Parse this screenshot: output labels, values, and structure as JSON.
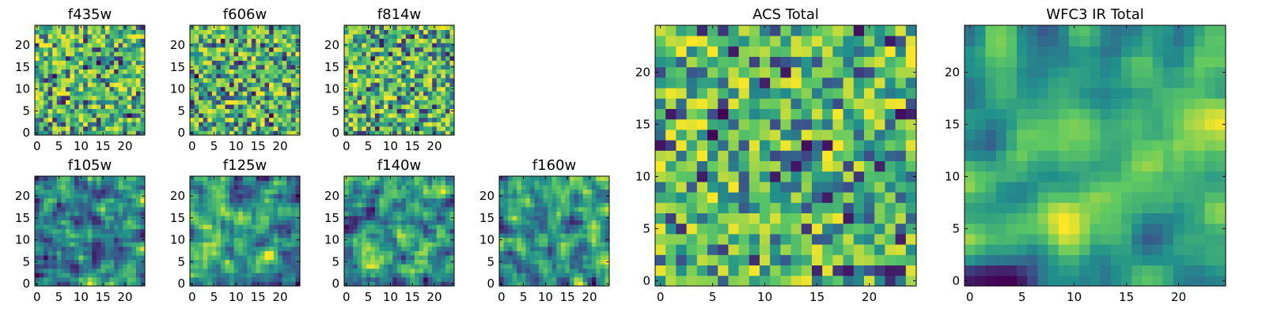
{
  "chart_data": [
    {
      "type": "heatmap",
      "title": "f435w",
      "size": 25,
      "seed": 11,
      "smooth": 0,
      "xticks": [
        "0",
        "5",
        "10",
        "15",
        "20"
      ],
      "yticks": [
        "0",
        "5",
        "10",
        "15",
        "20"
      ]
    },
    {
      "type": "heatmap",
      "title": "f606w",
      "size": 25,
      "seed": 23,
      "smooth": 0,
      "xticks": [
        "0",
        "5",
        "10",
        "15",
        "20"
      ],
      "yticks": [
        "0",
        "5",
        "10",
        "15",
        "20"
      ]
    },
    {
      "type": "heatmap",
      "title": "f814w",
      "size": 25,
      "seed": 37,
      "smooth": 0,
      "xticks": [
        "0",
        "5",
        "10",
        "15",
        "20"
      ],
      "yticks": [
        "0",
        "5",
        "10",
        "15",
        "20"
      ]
    },
    {
      "type": "heatmap",
      "title": "f105w",
      "size": 25,
      "seed": 41,
      "smooth": 1,
      "xticks": [
        "0",
        "5",
        "10",
        "15",
        "20"
      ],
      "yticks": [
        "0",
        "5",
        "10",
        "15",
        "20"
      ]
    },
    {
      "type": "heatmap",
      "title": "f125w",
      "size": 25,
      "seed": 53,
      "smooth": 1,
      "xticks": [
        "0",
        "5",
        "10",
        "15",
        "20"
      ],
      "yticks": [
        "0",
        "5",
        "10",
        "15",
        "20"
      ]
    },
    {
      "type": "heatmap",
      "title": "f140w",
      "size": 25,
      "seed": 67,
      "smooth": 1,
      "xticks": [
        "0",
        "5",
        "10",
        "15",
        "20"
      ],
      "yticks": [
        "0",
        "5",
        "10",
        "15",
        "20"
      ]
    },
    {
      "type": "heatmap",
      "title": "f160w",
      "size": 25,
      "seed": 79,
      "smooth": 1,
      "xticks": [
        "0",
        "5",
        "10",
        "15",
        "20"
      ],
      "yticks": [
        "0",
        "5",
        "10",
        "15",
        "20"
      ]
    },
    {
      "type": "heatmap",
      "title": "ACS Total",
      "size": 25,
      "seed": 83,
      "smooth": 0,
      "xticks": [
        "0",
        "5",
        "10",
        "15",
        "20"
      ],
      "yticks": [
        "0",
        "5",
        "10",
        "15",
        "20"
      ]
    },
    {
      "type": "heatmap",
      "title": "WFC3 IR Total",
      "size": 25,
      "seed": 97,
      "smooth": 2,
      "xticks": [
        "0",
        "5",
        "10",
        "15",
        "20"
      ],
      "yticks": [
        "0",
        "5",
        "10",
        "15",
        "20"
      ]
    }
  ],
  "colormap": [
    "#440154",
    "#3b528b",
    "#21918c",
    "#5ec962",
    "#fde725"
  ]
}
